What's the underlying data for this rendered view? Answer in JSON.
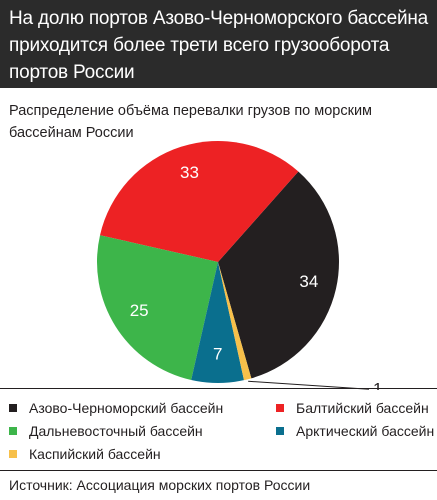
{
  "header": {
    "title": "На долю портов Азово-Черноморского бассейна приходится более трети всего грузооборота портов России"
  },
  "chart_data": {
    "type": "pie",
    "subtitle": "Распределение объёма перевалки грузов по морским бассейнам России",
    "categories": [
      "Азово-Черноморский бассейн",
      "Балтийский бассейн",
      "Дальневосточный бассейн",
      "Арктический бассейн",
      "Каспийский бассейн"
    ],
    "values": [
      34,
      33,
      25,
      7,
      1
    ],
    "labels": [
      "34",
      "33",
      "25",
      "7",
      "1"
    ],
    "colors": [
      "#231f20",
      "#ed2224",
      "#3db54a",
      "#0a6f8e",
      "#f7c04a"
    ],
    "legend": "bottom",
    "start_angle_deg": 74,
    "direction": "counterclockwise"
  },
  "source": "Источник: Ассоциация морских портов России"
}
